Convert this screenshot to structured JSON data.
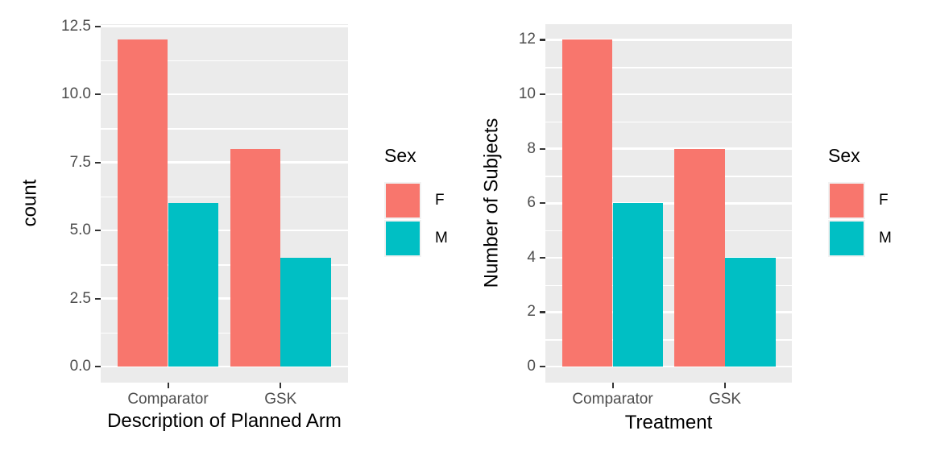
{
  "legend_shared": {
    "title": "Sex"
  },
  "colors": {
    "panel_background": "#EBEBEB",
    "gridline": "#FFFFFF",
    "tick_text": "#4D4D4D",
    "axis_title_text": "#000000",
    "female": "#F8766D",
    "male": "#00BFC4"
  },
  "chart_data": [
    {
      "type": "bar",
      "title": "",
      "categories": [
        "Comparator",
        "GSK"
      ],
      "series": [
        {
          "name": "F",
          "color": "#F8766D",
          "values": [
            12,
            8
          ]
        },
        {
          "name": "M",
          "color": "#00BFC4",
          "values": [
            6,
            4
          ]
        }
      ],
      "xlabel": "Description of Planned Arm",
      "ylabel": "count",
      "ylim": [
        0,
        12.5
      ],
      "ytick_values": [
        0,
        2.5,
        5,
        7.5,
        10,
        12.5
      ],
      "ytick_labels": [
        "0.0",
        "2.5",
        "5.0",
        "7.5",
        "10.0",
        "12.5"
      ],
      "grid": "on",
      "legend_title": "Sex",
      "legend_position": "right"
    },
    {
      "type": "bar",
      "title": "",
      "categories": [
        "Comparator",
        "GSK"
      ],
      "series": [
        {
          "name": "F",
          "color": "#F8766D",
          "values": [
            12,
            8
          ]
        },
        {
          "name": "M",
          "color": "#00BFC4",
          "values": [
            6,
            4
          ]
        }
      ],
      "xlabel": "Treatment",
      "ylabel": "Number of Subjects",
      "ylim": [
        0,
        12
      ],
      "ytick_values": [
        0,
        2,
        4,
        6,
        8,
        10,
        12
      ],
      "ytick_labels": [
        "0",
        "2",
        "4",
        "6",
        "8",
        "10",
        "12"
      ],
      "grid": "on",
      "legend_title": "Sex",
      "legend_position": "right"
    }
  ]
}
